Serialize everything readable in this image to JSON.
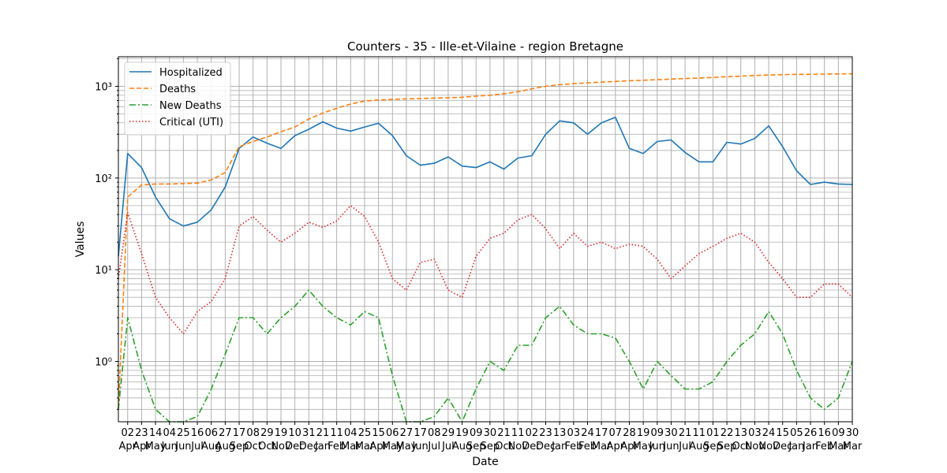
{
  "chart_data": {
    "type": "line",
    "title": "Counters - 35 - Ille-et-Vilaine - region Bretagne",
    "xlabel": "Date",
    "ylabel": "Values",
    "yscale": "log",
    "ylim": [
      0.22,
      2100
    ],
    "grid": true,
    "legend_position": "upper-left",
    "x": [
      "2020-03-19",
      "2020-04-02",
      "2020-04-23",
      "2020-05-14",
      "2020-06-04",
      "2020-06-25",
      "2020-07-16",
      "2020-08-06",
      "2020-08-27",
      "2020-09-17",
      "2020-10-08",
      "2020-10-29",
      "2020-11-19",
      "2020-12-10",
      "2020-12-31",
      "2021-01-21",
      "2021-02-11",
      "2021-03-04",
      "2021-03-25",
      "2021-04-15",
      "2021-05-06",
      "2021-05-27",
      "2021-06-17",
      "2021-07-08",
      "2021-07-29",
      "2021-08-19",
      "2021-09-09",
      "2021-09-30",
      "2021-10-21",
      "2021-11-11",
      "2021-12-02",
      "2021-12-23",
      "2022-01-13",
      "2022-02-03",
      "2022-02-24",
      "2022-03-17",
      "2022-04-07",
      "2022-04-28",
      "2022-05-19",
      "2022-06-09",
      "2022-06-30",
      "2022-07-21",
      "2022-08-11",
      "2022-09-01",
      "2022-09-22",
      "2022-10-13",
      "2022-11-03",
      "2022-11-24",
      "2022-12-15",
      "2023-01-05",
      "2023-01-26",
      "2023-02-16",
      "2023-03-09",
      "2023-03-30"
    ],
    "xtick_dates": [
      "2020-04-02",
      "2020-04-23",
      "2020-05-14",
      "2020-06-04",
      "2020-06-25",
      "2020-07-16",
      "2020-08-06",
      "2020-08-27",
      "2020-09-17",
      "2020-10-08",
      "2020-10-29",
      "2020-11-19",
      "2020-12-10",
      "2020-12-31",
      "2021-01-21",
      "2021-02-11",
      "2021-03-04",
      "2021-03-25",
      "2021-04-15",
      "2021-05-06",
      "2021-05-27",
      "2021-06-17",
      "2021-07-08",
      "2021-07-29",
      "2021-08-19",
      "2021-09-09",
      "2021-09-30",
      "2021-10-21",
      "2021-11-11",
      "2021-12-02",
      "2021-12-23",
      "2022-01-13",
      "2022-02-03",
      "2022-02-24",
      "2022-03-17",
      "2022-04-07",
      "2022-04-28",
      "2022-05-19",
      "2022-06-09",
      "2022-06-30",
      "2022-07-21",
      "2022-08-11",
      "2022-09-01",
      "2022-09-22",
      "2022-10-13",
      "2022-11-03",
      "2022-11-24",
      "2022-12-15",
      "2023-01-05",
      "2023-01-26",
      "2023-02-16",
      "2023-03-09",
      "2023-03-30"
    ],
    "xtick_labels_top": [
      "02",
      "23",
      "14",
      "04",
      "25",
      "16",
      "06",
      "27",
      "17",
      "08",
      "29",
      "19",
      "10",
      "31",
      "21",
      "11",
      "04",
      "25",
      "15",
      "06",
      "27",
      "17",
      "08",
      "29",
      "19",
      "09",
      "30",
      "21",
      "11",
      "02",
      "23",
      "13",
      "03",
      "24",
      "17",
      "07",
      "28",
      "19",
      "09",
      "30",
      "21",
      "11",
      "01",
      "22",
      "13",
      "03",
      "24",
      "15",
      "05",
      "26",
      "16",
      "09",
      "30"
    ],
    "xtick_labels_bottom": [
      "Apr",
      "Apr",
      "May",
      "Jun",
      "Jun",
      "Jul",
      "Aug",
      "Aug",
      "Sep",
      "Oct",
      "Oct",
      "Nov",
      "Dec",
      "Dec",
      "Jan",
      "Feb",
      "Mar",
      "Mar",
      "Apr",
      "May",
      "May",
      "Jun",
      "Jul",
      "Jul",
      "Aug",
      "Sep",
      "Sep",
      "Oct",
      "Nov",
      "Dec",
      "Dec",
      "Jan",
      "Feb",
      "Feb",
      "Mar",
      "Apr",
      "Apr",
      "May",
      "Jun",
      "Jun",
      "Jul",
      "Aug",
      "Sep",
      "Sep",
      "Oct",
      "Nov",
      "Nov",
      "Dec",
      "Jan",
      "Jan",
      "Feb",
      "Mar",
      "Mar"
    ],
    "ytick_labels": [
      "10⁰",
      "10¹",
      "10²",
      "10³"
    ],
    "series": [
      {
        "name": "Hospitalized",
        "color": "#1f77b4",
        "style": "solid",
        "values": [
          14,
          185,
          130,
          62,
          36,
          30,
          33,
          45,
          80,
          210,
          280,
          240,
          210,
          290,
          340,
          410,
          350,
          325,
          360,
          395,
          290,
          175,
          138,
          145,
          170,
          135,
          130,
          150,
          125,
          165,
          175,
          300,
          420,
          400,
          300,
          400,
          460,
          210,
          185,
          250,
          260,
          190,
          150,
          150,
          245,
          235,
          270,
          370,
          220,
          120,
          85,
          90,
          86,
          85
        ]
      },
      {
        "name": "Deaths",
        "color": "#ff7f0e",
        "style": "dashed",
        "values": [
          0.3,
          62,
          84,
          86,
          86,
          87,
          88,
          95,
          115,
          220,
          250,
          280,
          320,
          360,
          440,
          510,
          575,
          640,
          690,
          710,
          720,
          730,
          735,
          745,
          750,
          760,
          780,
          800,
          830,
          870,
          940,
          1000,
          1040,
          1070,
          1090,
          1110,
          1130,
          1150,
          1165,
          1180,
          1200,
          1215,
          1230,
          1250,
          1270,
          1290,
          1310,
          1330,
          1340,
          1350,
          1350,
          1360,
          1365,
          1370
        ]
      },
      {
        "name": "New Deaths",
        "color": "#2ca02c",
        "style": "dashdot",
        "values": [
          0.3,
          3,
          0.8,
          0.3,
          0.22,
          0.22,
          0.25,
          0.5,
          1.2,
          3,
          3,
          2,
          3,
          4,
          6,
          4,
          3,
          2.5,
          3.5,
          3,
          0.7,
          0.22,
          0.22,
          0.25,
          0.4,
          0.22,
          0.5,
          1,
          0.8,
          1.5,
          1.5,
          3,
          4,
          2.5,
          2,
          2,
          1.8,
          1,
          0.5,
          1,
          0.7,
          0.5,
          0.5,
          0.6,
          1,
          1.5,
          2,
          3.5,
          2,
          0.8,
          0.4,
          0.3,
          0.4,
          1
        ]
      },
      {
        "name": "Critical (UTI)",
        "color": "#d62728",
        "style": "dotted",
        "values": [
          8,
          42,
          15,
          5,
          3,
          2,
          3.5,
          4.5,
          8,
          30,
          38,
          27,
          20,
          25,
          33,
          29,
          34,
          50,
          38,
          20,
          8,
          6,
          12,
          13,
          6,
          5,
          14,
          22,
          25,
          35,
          40,
          28,
          17,
          25,
          18,
          20,
          17,
          19,
          18,
          13,
          8,
          11,
          15,
          18,
          22,
          25,
          20,
          12,
          8,
          5,
          5,
          7,
          7,
          5
        ]
      }
    ]
  }
}
